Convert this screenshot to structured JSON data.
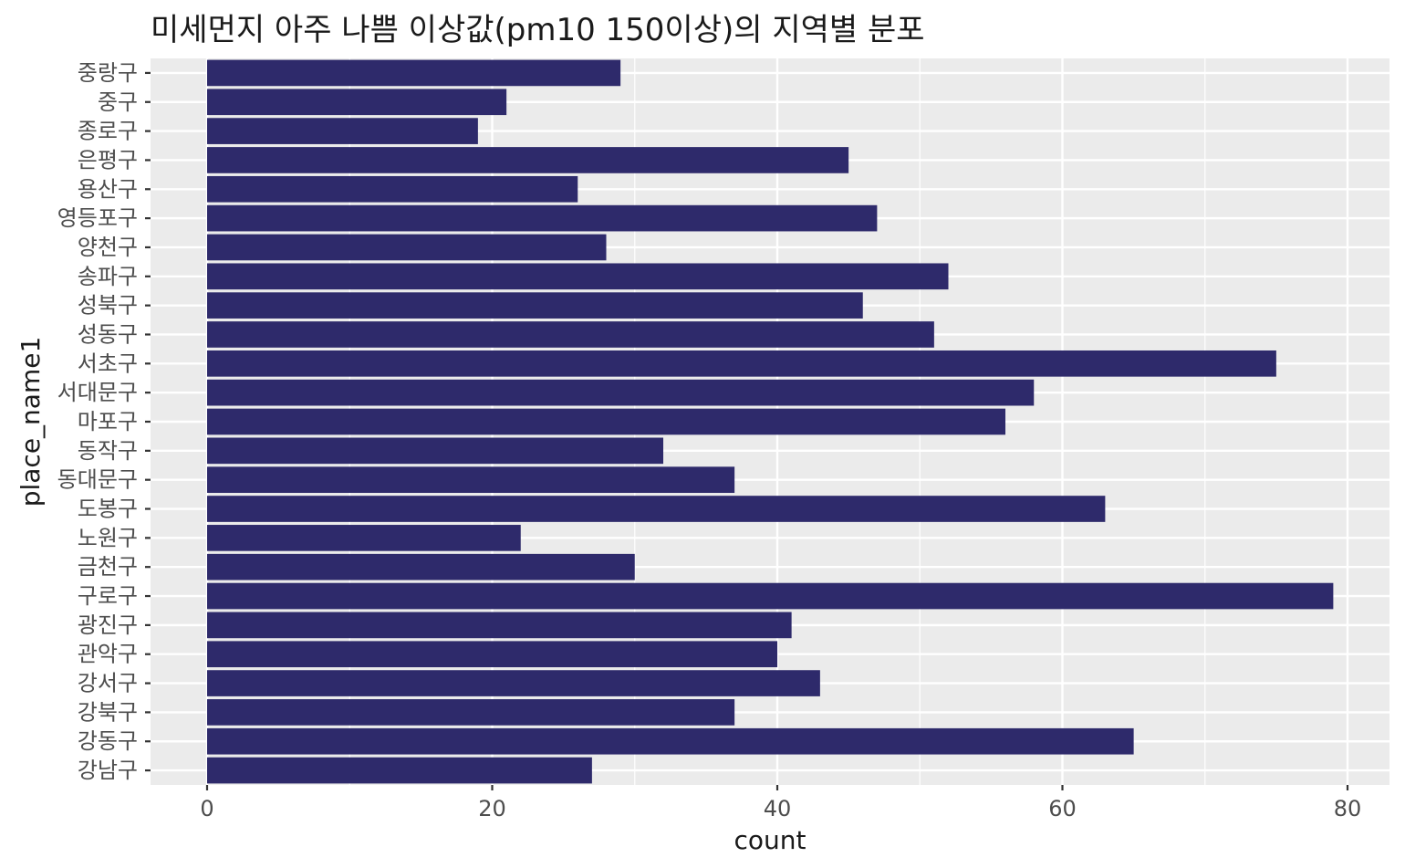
{
  "chart_data": {
    "type": "bar",
    "orientation": "horizontal",
    "title": "미세먼지 아주 나쁨 이상값(pm10 150이상)의 지역별 분포",
    "xlabel": "count",
    "ylabel": "place_name1",
    "xlim": [
      0,
      80
    ],
    "x_ticks": [
      0,
      20,
      40,
      60,
      80
    ],
    "grid": true,
    "categories": [
      "강남구",
      "강동구",
      "강북구",
      "강서구",
      "관악구",
      "광진구",
      "구로구",
      "금천구",
      "노원구",
      "도봉구",
      "동대문구",
      "동작구",
      "마포구",
      "서대문구",
      "서초구",
      "성동구",
      "성북구",
      "송파구",
      "양천구",
      "영등포구",
      "용산구",
      "은평구",
      "종로구",
      "중구",
      "중랑구"
    ],
    "values": [
      27,
      65,
      37,
      43,
      40,
      41,
      79,
      30,
      22,
      63,
      37,
      32,
      56,
      58,
      75,
      51,
      46,
      52,
      28,
      47,
      26,
      45,
      19,
      21,
      29
    ],
    "colors": {
      "bar": "#2e2a6b",
      "panel": "#ebebeb",
      "grid": "#ffffff",
      "text": "#1a1a1a",
      "tick_text": "#4d4d4d"
    }
  }
}
